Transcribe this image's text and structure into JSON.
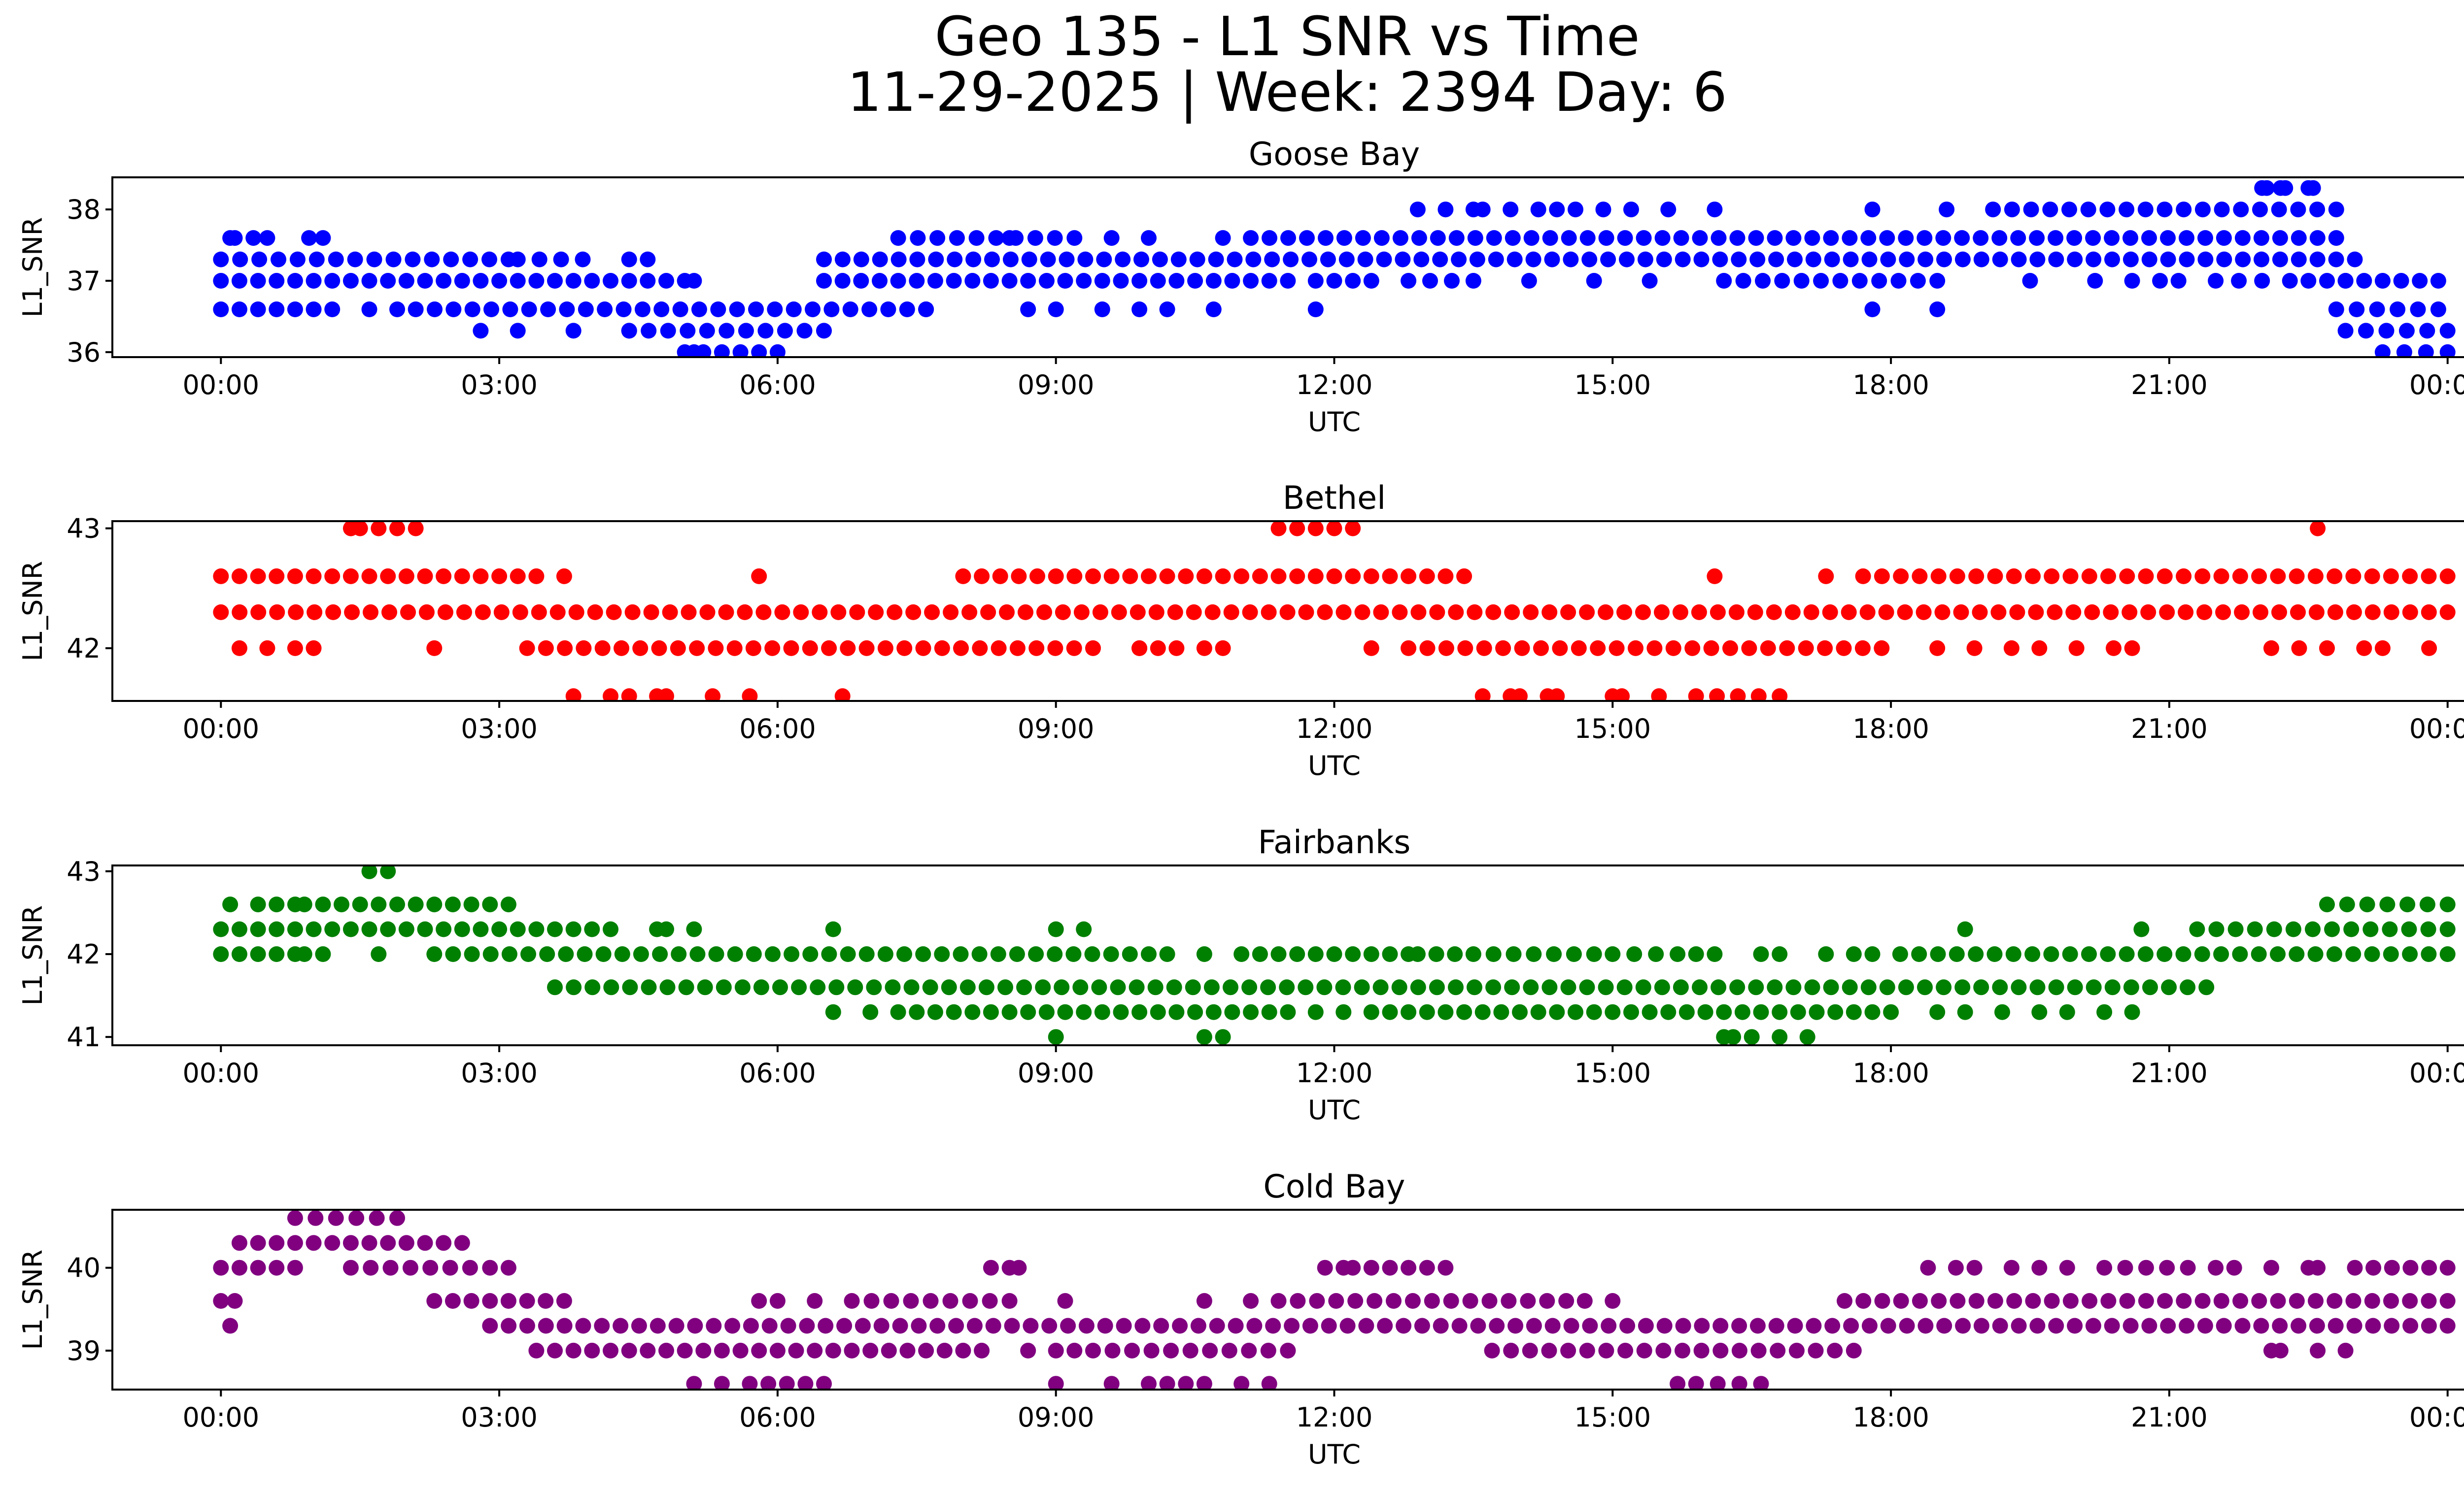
{
  "title_line1": "Geo 135 - L1 SNR vs Time",
  "title_line2": "11-29-2025 | Week: 2394 Day: 6",
  "chart_data": [
    {
      "type": "scatter",
      "title": "Goose Bay",
      "xlabel": "UTC",
      "ylabel": "L1_SNR",
      "color": "#0000ff",
      "xlim_hours": [
        -1.17,
        25.17
      ],
      "ylim": [
        35.93,
        38.45
      ],
      "xticks": [
        "00:00",
        "03:00",
        "06:00",
        "09:00",
        "12:00",
        "15:00",
        "18:00",
        "21:00",
        "00:00"
      ],
      "yticks": [
        36,
        37,
        38
      ],
      "levels": [
        36.0,
        36.3,
        36.6,
        37.0,
        37.3,
        37.6,
        38.0,
        38.3
      ],
      "segments": [
        {
          "y": 37.3,
          "ranges": [
            [
              0,
              3.1
            ],
            [
              3.2,
              3.9
            ],
            [
              4.4,
              4.6
            ]
          ]
        },
        {
          "y": 37.0,
          "ranges": [
            [
              0,
              5.0
            ]
          ]
        },
        {
          "y": 36.6,
          "ranges": [
            [
              0,
              1.2
            ],
            [
              1.6,
              1.9
            ],
            [
              2.1,
              7.6
            ]
          ]
        },
        {
          "y": 37.6,
          "ranges": [
            [
              0.1,
              0.15
            ],
            [
              0.35,
              0.5
            ],
            [
              0.95,
              1.1
            ]
          ]
        },
        {
          "y": 36.3,
          "ranges": [
            [
              4.4,
              6.5
            ]
          ]
        },
        {
          "y": 36.0,
          "ranges": [
            [
              5.0,
              5.1
            ],
            [
              5.2,
              6.0
            ]
          ]
        },
        {
          "y": 37.3,
          "ranges": [
            [
              6.5,
              23.0
            ]
          ]
        },
        {
          "y": 37.0,
          "ranges": [
            [
              6.5,
              11.5
            ],
            [
              11.8,
              12.4
            ],
            [
              12.8,
              13.5
            ]
          ]
        },
        {
          "y": 37.6,
          "ranges": [
            [
              7.3,
              9.2
            ],
            [
              11.1,
              22.8
            ]
          ]
        },
        {
          "y": 37.0,
          "ranges": [
            [
              16.2,
              18.5
            ],
            [
              20.9,
              21.1
            ],
            [
              21.5,
              22.0
            ],
            [
              22.3,
              22.9
            ]
          ]
        },
        {
          "y": 38.0,
          "ranges": [
            [
              13.2,
              13.5
            ],
            [
              14.2,
              14.6
            ],
            [
              14.9,
              15.2
            ],
            [
              19.1,
              22.8
            ]
          ]
        },
        {
          "y": 38.3,
          "ranges": [
            [
              22.0,
              22.05
            ],
            [
              22.2,
              22.25
            ],
            [
              22.5,
              22.55
            ]
          ]
        },
        {
          "y": 37.0,
          "ranges": [
            [
              22.9,
              23.9
            ]
          ]
        },
        {
          "y": 36.6,
          "ranges": [
            [
              22.8,
              23.9
            ]
          ]
        },
        {
          "y": 36.3,
          "ranges": [
            [
              22.9,
              24.0
            ]
          ]
        },
        {
          "y": 36.0,
          "ranges": [
            [
              23.3,
              24.0
            ]
          ]
        }
      ],
      "singles": [
        [
          2.8,
          36.3
        ],
        [
          3.2,
          36.3
        ],
        [
          3.8,
          36.3
        ],
        [
          4.4,
          36.3
        ],
        [
          5.1,
          37.0
        ],
        [
          7.6,
          36.6
        ],
        [
          8.7,
          36.6
        ],
        [
          9.0,
          36.6
        ],
        [
          9.5,
          36.6
        ],
        [
          9.9,
          36.6
        ],
        [
          10.2,
          36.6
        ],
        [
          10.7,
          36.6
        ],
        [
          11.8,
          36.6
        ],
        [
          8.5,
          37.6
        ],
        [
          9.6,
          37.6
        ],
        [
          10.0,
          37.6
        ],
        [
          10.8,
          37.6
        ],
        [
          12.9,
          38.0
        ],
        [
          13.6,
          38.0
        ],
        [
          13.9,
          38.0
        ],
        [
          15.6,
          38.0
        ],
        [
          16.1,
          38.0
        ],
        [
          17.8,
          38.0
        ],
        [
          18.6,
          38.0
        ],
        [
          14.1,
          37.0
        ],
        [
          14.8,
          37.0
        ],
        [
          15.4,
          37.0
        ],
        [
          17.8,
          36.6
        ],
        [
          18.5,
          36.6
        ],
        [
          19.5,
          37.0
        ],
        [
          20.2,
          37.0
        ],
        [
          20.6,
          37.0
        ]
      ]
    },
    {
      "type": "scatter",
      "title": "Bethel",
      "xlabel": "UTC",
      "ylabel": "L1_SNR",
      "color": "#ff0000",
      "xlim_hours": [
        -1.17,
        25.17
      ],
      "ylim": [
        41.56,
        43.06
      ],
      "xticks": [
        "00:00",
        "03:00",
        "06:00",
        "09:00",
        "12:00",
        "15:00",
        "18:00",
        "21:00",
        "00:00"
      ],
      "yticks": [
        42,
        43
      ],
      "levels": [
        41.6,
        42.0,
        42.3,
        42.6,
        43.0
      ],
      "segments": [
        {
          "y": 42.3,
          "ranges": [
            [
              0,
              24.0
            ]
          ]
        },
        {
          "y": 42.6,
          "ranges": [
            [
              0,
              3.4
            ],
            [
              8.0,
              13.2
            ],
            [
              17.7,
              24.0
            ]
          ]
        },
        {
          "y": 43.0,
          "ranges": [
            [
              1.4,
              1.5
            ],
            [
              1.7,
              2.1
            ],
            [
              11.4,
              11.6
            ],
            [
              11.8,
              12.2
            ]
          ]
        },
        {
          "y": 42.0,
          "ranges": [
            [
              3.3,
              9.4
            ],
            [
              9.9,
              10.3
            ],
            [
              10.6,
              10.8
            ],
            [
              12.8,
              17.9
            ],
            [
              20.4,
              20.6
            ]
          ]
        },
        {
          "y": 41.6,
          "ranges": [
            [
              4.2,
              4.4
            ],
            [
              4.7,
              4.8
            ],
            [
              13.9,
              14.0
            ],
            [
              14.3,
              14.4
            ],
            [
              15.0,
              15.1
            ],
            [
              15.9,
              16.8
            ]
          ]
        }
      ],
      "singles": [
        [
          3.7,
          42.6
        ],
        [
          5.8,
          42.6
        ],
        [
          13.4,
          42.6
        ],
        [
          16.1,
          42.6
        ],
        [
          17.3,
          42.6
        ],
        [
          22.6,
          43.0
        ],
        [
          0.2,
          42.0
        ],
        [
          0.5,
          42.0
        ],
        [
          0.8,
          42.0
        ],
        [
          1.0,
          42.0
        ],
        [
          2.3,
          42.0
        ],
        [
          9.9,
          42.0
        ],
        [
          12.4,
          42.0
        ],
        [
          18.5,
          42.0
        ],
        [
          18.9,
          42.0
        ],
        [
          19.3,
          42.0
        ],
        [
          19.6,
          42.0
        ],
        [
          20.0,
          42.0
        ],
        [
          22.1,
          42.0
        ],
        [
          22.4,
          42.0
        ],
        [
          22.7,
          42.0
        ],
        [
          23.1,
          42.0
        ],
        [
          23.3,
          42.0
        ],
        [
          23.8,
          42.0
        ],
        [
          3.8,
          41.6
        ],
        [
          5.3,
          41.6
        ],
        [
          5.7,
          41.6
        ],
        [
          6.7,
          41.6
        ],
        [
          13.6,
          41.6
        ],
        [
          15.5,
          41.6
        ]
      ]
    },
    {
      "type": "scatter",
      "title": "Fairbanks",
      "xlabel": "UTC",
      "ylabel": "L1_SNR",
      "color": "#008000",
      "xlim_hours": [
        -1.17,
        25.17
      ],
      "ylim": [
        40.9,
        43.07
      ],
      "xticks": [
        "00:00",
        "03:00",
        "06:00",
        "09:00",
        "12:00",
        "15:00",
        "18:00",
        "21:00",
        "00:00"
      ],
      "yticks": [
        41,
        42,
        43
      ],
      "levels": [
        41.0,
        41.3,
        41.6,
        42.0,
        42.3,
        42.6,
        43.0
      ],
      "segments": [
        {
          "y": 42.3,
          "ranges": [
            [
              0,
              4.0
            ],
            [
              21.3,
              24.0
            ]
          ]
        },
        {
          "y": 42.6,
          "ranges": [
            [
              0.4,
              0.8
            ],
            [
              0.9,
              3.1
            ],
            [
              22.7,
              24.0
            ]
          ]
        },
        {
          "y": 42.0,
          "ranges": [
            [
              0,
              0.8
            ],
            [
              2.3,
              10.0
            ],
            [
              11.0,
              12.8
            ],
            [
              12.9,
              13.3
            ],
            [
              13.5,
              14.8
            ],
            [
              15.0,
              15.7
            ],
            [
              18.1,
              24.0
            ]
          ]
        },
        {
          "y": 41.6,
          "ranges": [
            [
              3.6,
              21.4
            ]
          ]
        },
        {
          "y": 41.3,
          "ranges": [
            [
              7.3,
              11.5
            ],
            [
              12.4,
              14.4
            ],
            [
              14.6,
              18.0
            ]
          ]
        }
      ],
      "singles": [
        [
          0.1,
          42.6
        ],
        [
          1.6,
          43.0
        ],
        [
          1.8,
          43.0
        ],
        [
          0.9,
          42.0
        ],
        [
          1.1,
          42.0
        ],
        [
          1.7,
          42.0
        ],
        [
          4.2,
          42.3
        ],
        [
          4.7,
          42.3
        ],
        [
          4.8,
          42.3
        ],
        [
          5.1,
          42.3
        ],
        [
          6.6,
          42.3
        ],
        [
          9.0,
          42.3
        ],
        [
          9.3,
          42.3
        ],
        [
          18.8,
          42.3
        ],
        [
          20.7,
          42.3
        ],
        [
          10.2,
          42.0
        ],
        [
          10.6,
          42.0
        ],
        [
          15.9,
          42.0
        ],
        [
          16.1,
          42.0
        ],
        [
          16.6,
          42.0
        ],
        [
          16.8,
          42.0
        ],
        [
          17.3,
          42.0
        ],
        [
          17.6,
          42.0
        ],
        [
          17.8,
          42.0
        ],
        [
          6.6,
          41.3
        ],
        [
          7.0,
          41.3
        ],
        [
          11.8,
          41.3
        ],
        [
          12.1,
          41.3
        ],
        [
          18.5,
          41.3
        ],
        [
          18.8,
          41.3
        ],
        [
          19.2,
          41.3
        ],
        [
          19.6,
          41.3
        ],
        [
          19.9,
          41.3
        ],
        [
          20.3,
          41.3
        ],
        [
          20.6,
          41.3
        ],
        [
          9.0,
          41.0
        ],
        [
          10.6,
          41.0
        ],
        [
          10.8,
          41.0
        ],
        [
          16.2,
          41.0
        ],
        [
          16.3,
          41.0
        ],
        [
          16.5,
          41.0
        ],
        [
          16.8,
          41.0
        ],
        [
          17.1,
          41.0
        ]
      ]
    },
    {
      "type": "scatter",
      "title": "Cold Bay",
      "xlabel": "UTC",
      "ylabel": "L1_SNR",
      "color": "#800080",
      "xlim_hours": [
        -1.17,
        25.17
      ],
      "ylim": [
        38.53,
        40.7
      ],
      "xticks": [
        "00:00",
        "03:00",
        "06:00",
        "09:00",
        "12:00",
        "15:00",
        "18:00",
        "21:00",
        "00:00"
      ],
      "yticks": [
        39,
        40
      ],
      "levels": [
        38.6,
        39.0,
        39.3,
        39.6,
        40.0,
        40.3,
        40.6
      ],
      "segments": [
        {
          "y": 40.0,
          "ranges": [
            [
              0,
              0.8
            ],
            [
              1.4,
              2.9
            ]
          ]
        },
        {
          "y": 40.3,
          "ranges": [
            [
              0.2,
              2.6
            ]
          ]
        },
        {
          "y": 40.6,
          "ranges": [
            [
              0.8,
              1.9
            ]
          ]
        },
        {
          "y": 39.6,
          "ranges": [
            [
              0,
              0.15
            ],
            [
              2.3,
              3.7
            ],
            [
              6.8,
              8.5
            ],
            [
              11.4,
              14.5
            ],
            [
              17.5,
              24.0
            ]
          ]
        },
        {
          "y": 39.3,
          "ranges": [
            [
              2.9,
              24.0
            ]
          ]
        },
        {
          "y": 39.0,
          "ranges": [
            [
              3.4,
              8.2
            ],
            [
              9.4,
              11.5
            ],
            [
              13.7,
              17.6
            ]
          ]
        },
        {
          "y": 40.0,
          "ranges": [
            [
              12.2,
              13.2
            ],
            [
              20.3,
              21.2
            ],
            [
              23.0,
              24.0
            ]
          ]
        },
        {
          "y": 38.6,
          "ranges": [
            [
              5.7,
              6.5
            ],
            [
              10.0,
              10.6
            ],
            [
              15.9,
              16.6
            ]
          ]
        }
      ],
      "singles": [
        [
          0.1,
          39.3
        ],
        [
          3.1,
          40.0
        ],
        [
          8.3,
          40.0
        ],
        [
          8.5,
          40.0
        ],
        [
          8.6,
          40.0
        ],
        [
          11.9,
          40.0
        ],
        [
          12.1,
          40.0
        ],
        [
          18.4,
          40.0
        ],
        [
          18.7,
          40.0
        ],
        [
          18.9,
          40.0
        ],
        [
          19.3,
          40.0
        ],
        [
          19.6,
          40.0
        ],
        [
          19.9,
          40.0
        ],
        [
          21.5,
          40.0
        ],
        [
          21.7,
          40.0
        ],
        [
          22.1,
          40.0
        ],
        [
          22.5,
          40.0
        ],
        [
          22.6,
          40.0
        ],
        [
          5.8,
          39.6
        ],
        [
          6.0,
          39.6
        ],
        [
          6.4,
          39.6
        ],
        [
          9.1,
          39.6
        ],
        [
          10.6,
          39.6
        ],
        [
          11.1,
          39.6
        ],
        [
          14.7,
          39.6
        ],
        [
          15.0,
          39.6
        ],
        [
          8.7,
          39.0
        ],
        [
          9.0,
          39.0
        ],
        [
          9.2,
          39.0
        ],
        [
          11.5,
          39.0
        ],
        [
          22.1,
          39.0
        ],
        [
          22.2,
          39.0
        ],
        [
          22.6,
          39.0
        ],
        [
          22.9,
          39.0
        ],
        [
          5.1,
          38.6
        ],
        [
          5.4,
          38.6
        ],
        [
          9.0,
          38.6
        ],
        [
          9.6,
          38.6
        ],
        [
          11.0,
          38.6
        ],
        [
          11.3,
          38.6
        ],
        [
          15.7,
          38.6
        ]
      ]
    }
  ]
}
